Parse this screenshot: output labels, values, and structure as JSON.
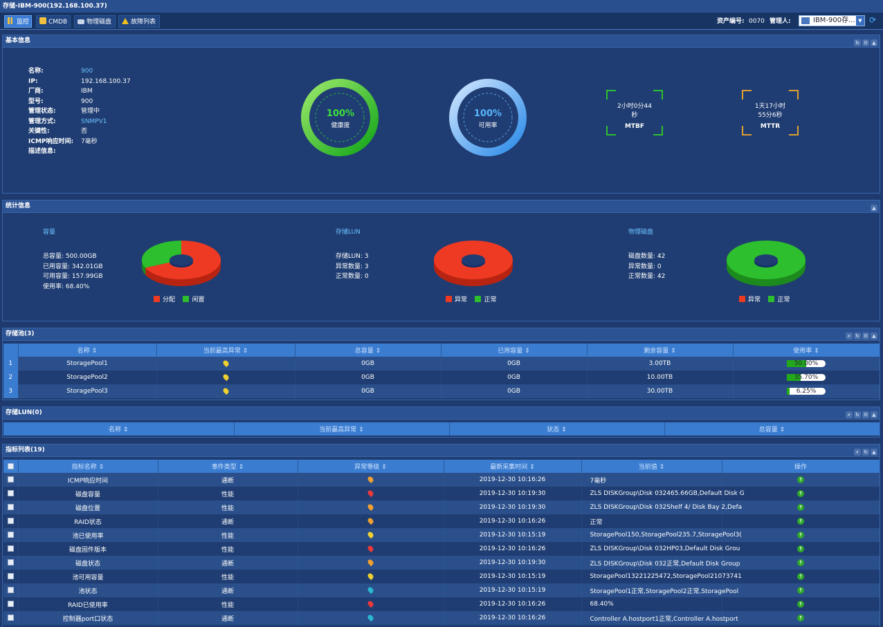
{
  "window_title": "存储-IBM-900(192.168.100.37)",
  "tabs": [
    {
      "label": "监控",
      "icon": "monitor-icon"
    },
    {
      "label": "CMDB",
      "icon": "database-icon"
    },
    {
      "label": "物理磁盘",
      "icon": "disk-icon"
    },
    {
      "label": "故障列表",
      "icon": "warning-icon"
    }
  ],
  "header_right": {
    "asset_label": "资产编号:",
    "asset_value": "0070",
    "manager_label": "管理人:",
    "select_value": "IBM-900存..."
  },
  "basic_info": {
    "title": "基本信息",
    "fields": [
      {
        "k": "名称:",
        "v": "900",
        "link": true
      },
      {
        "k": "IP:",
        "v": "192.168.100.37"
      },
      {
        "k": "厂商:",
        "v": "IBM"
      },
      {
        "k": "型号:",
        "v": "900"
      },
      {
        "k": "管理状态:",
        "v": "管理中"
      },
      {
        "k": "管理方式:",
        "v": "SNMPV1",
        "link": true
      },
      {
        "k": "关键性:",
        "v": "否"
      },
      {
        "k": "ICMP响应时间:",
        "v": "7毫秒"
      },
      {
        "k": "描述信息:",
        "v": ""
      }
    ],
    "health": {
      "value": "100%",
      "label": "健康度",
      "fraction": 1.0
    },
    "availability": {
      "value": "100%",
      "label": "可用率",
      "fraction": 1.0
    },
    "mtbf": {
      "line1": "2小时0分44",
      "line2": "秒",
      "label": "MTBF"
    },
    "mttr": {
      "line1": "1天17小时",
      "line2": "55分6秒",
      "label": "MTTR"
    }
  },
  "stats": {
    "title": "统计信息",
    "capacity": {
      "title": "容量",
      "lines": [
        "总容量:   500.00GB",
        "已用容量:  342.01GB",
        "可用容量:  157.99GB",
        "使用率:    68.40%"
      ],
      "legend": [
        "分配",
        "闲置"
      ],
      "used_fraction": 0.684
    },
    "lun": {
      "title": "存储LUN",
      "lines": [
        "存储LUN:  3",
        "异常数量:  3",
        "正常数量:  0"
      ],
      "legend": [
        "异常",
        "正常"
      ],
      "abnormal_fraction": 1.0
    },
    "disks": {
      "title": "物理磁盘",
      "lines": [
        "磁盘数量:  42",
        "异常数量:  0",
        "正常数量:  42"
      ],
      "legend": [
        "异常",
        "正常"
      ],
      "abnormal_fraction": 0.0
    },
    "colors": {
      "red": "#ee3a22",
      "green": "#2dbf2d"
    }
  },
  "pools": {
    "title": "存储池(3)",
    "columns": [
      "名称 ⇕",
      "当前最高异常 ⇕",
      "总容量 ⇕",
      "已用容量 ⇕",
      "剩余容量 ⇕",
      "使用率 ⇕"
    ],
    "rows": [
      {
        "n": "1",
        "name": "StoragePool1",
        "pin": "#f0d030",
        "total": "0GB",
        "used": "0GB",
        "free": "3.00TB",
        "rate": "50.00%",
        "frac": 0.5
      },
      {
        "n": "2",
        "name": "StoragePool2",
        "pin": "#f0d030",
        "total": "0GB",
        "used": "0GB",
        "free": "10.00TB",
        "rate": "35.70%",
        "frac": 0.357
      },
      {
        "n": "3",
        "name": "StoragePool3",
        "pin": "#f0d030",
        "total": "0GB",
        "used": "0GB",
        "free": "30.00TB",
        "rate": "6.25%",
        "frac": 0.0625
      }
    ]
  },
  "luns": {
    "title": "存储LUN(0)",
    "columns": [
      "名称 ⇕",
      "当前最高异常 ⇕",
      "状态 ⇕",
      "总容量 ⇕"
    ]
  },
  "metrics": {
    "title": "指标列表(19)",
    "columns": [
      "指标名称 ⇕",
      "事件类型 ⇕",
      "异常等级 ⇕",
      "最新采集时间 ⇕",
      "当前值 ⇕",
      "操作"
    ],
    "rows": [
      {
        "name": "ICMP响应时间",
        "type": "通断",
        "pin": "#f0a030",
        "time": "2019-12-30 10:16:26",
        "val": "7毫秒"
      },
      {
        "name": "磁盘容量",
        "type": "性能",
        "pin": "#e83a3a",
        "time": "2019-12-30 10:19:30",
        "val": "ZLS DISKGroup\\Disk 032465.66GB,Default Disk G"
      },
      {
        "name": "磁盘位置",
        "type": "性能",
        "pin": "#f0a030",
        "time": "2019-12-30 10:19:30",
        "val": "ZLS DISKGroup\\Disk 032Shelf 4/ Disk Bay 2,Defa"
      },
      {
        "name": "RAID状态",
        "type": "通断",
        "pin": "#f0a030",
        "time": "2019-12-30 10:16:26",
        "val": "正常"
      },
      {
        "name": "池已使用率",
        "type": "性能",
        "pin": "#f0d030",
        "time": "2019-12-30 10:15:19",
        "val": "StoragePool150,StoragePool235.7,StoragePool3("
      },
      {
        "name": "磁盘固件版本",
        "type": "性能",
        "pin": "#e83a3a",
        "time": "2019-12-30 10:16:26",
        "val": "ZLS DISKGroup\\Disk 032HP03,Default Disk Grou"
      },
      {
        "name": "磁盘状态",
        "type": "通断",
        "pin": "#f0a030",
        "time": "2019-12-30 10:19:30",
        "val": "ZLS DISKGroup\\Disk 032正常,Default Disk Group"
      },
      {
        "name": "池可用容量",
        "type": "性能",
        "pin": "#f0d030",
        "time": "2019-12-30 10:15:19",
        "val": "StoragePool13221225472,StoragePool21073741"
      },
      {
        "name": "池状态",
        "type": "通断",
        "pin": "#2ab8d0",
        "time": "2019-12-30 10:15:19",
        "val": "StoragePool1正常,StoragePool2正常,StoragePool"
      },
      {
        "name": "RAID已使用率",
        "type": "性能",
        "pin": "#e83a3a",
        "time": "2019-12-30 10:16:26",
        "val": "68.40%"
      },
      {
        "name": "控制器port口状态",
        "type": "通断",
        "pin": "#2ab8d0",
        "time": "2019-12-30 10:16:26",
        "val": "Controller A.hostport1正常,Controller A.hostport"
      }
    ]
  }
}
